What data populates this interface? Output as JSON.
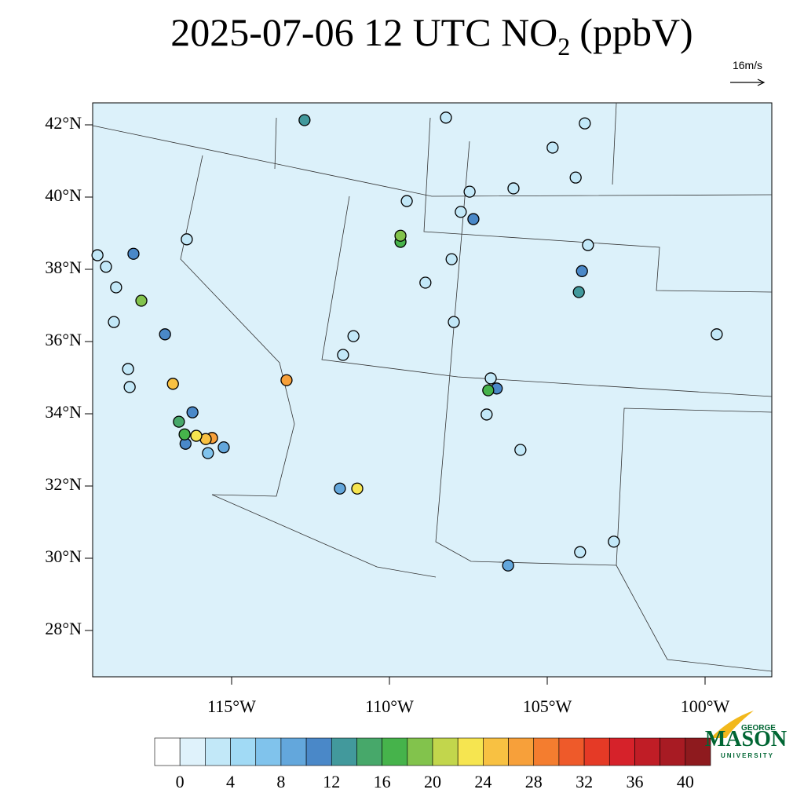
{
  "map": {
    "title": {
      "main": "2025-07-06 12 UTC NO",
      "subscript": "2",
      "unit": "(ppbV)"
    },
    "wind_reference": "16m/s",
    "lat_ticks": [
      {
        "value": 42,
        "label": "42°N"
      },
      {
        "value": 40,
        "label": "40°N"
      },
      {
        "value": 38,
        "label": "38°N"
      },
      {
        "value": 36,
        "label": "36°N"
      },
      {
        "value": 34,
        "label": "34°N"
      },
      {
        "value": 32,
        "label": "32°N"
      },
      {
        "value": 30,
        "label": "30°N"
      },
      {
        "value": 28,
        "label": "28°N"
      }
    ],
    "lon_ticks": [
      {
        "value": -115,
        "label": "115°W"
      },
      {
        "value": -110,
        "label": "110°W"
      },
      {
        "value": -105,
        "label": "105°W"
      },
      {
        "value": -100,
        "label": "100°W"
      }
    ],
    "colorbar": {
      "lim": [
        -2,
        42
      ],
      "ticks": [
        0,
        4,
        8,
        12,
        16,
        20,
        24,
        28,
        32,
        36,
        40
      ],
      "colors": [
        "#ffffff",
        "#dff2fb",
        "#c2e8f8",
        "#a1daf5",
        "#80c3ec",
        "#63a7dc",
        "#4a88c8",
        "#42999c",
        "#47a86a",
        "#46b34b",
        "#82c34c",
        "#c2d64c",
        "#f6e550",
        "#f8c142",
        "#f7a03a",
        "#f47d2f",
        "#ee5a2a",
        "#e53a26",
        "#d6222a",
        "#c01d26",
        "#a81b23",
        "#8e1a1e"
      ]
    },
    "stations": {
      "lon": [
        -112.69,
        -103.81,
        -109.65,
        -109.65,
        -107.34,
        -118.11,
        -117.86,
        -117.11,
        -116.86,
        -116.67,
        -116.49,
        -116.12,
        -115.82,
        -115.62,
        -116.24,
        -116.46,
        -115.75,
        -115.25,
        -113.26,
        -111.02,
        -111.57,
        -106.87,
        -106.6,
        -104.0,
        -103.9,
        -106.24,
        -119.25,
        -118.66,
        -116.42,
        -111.47,
        -111.14,
        -108.21,
        -107.46,
        -106.07,
        -104.83,
        -104.1,
        -103.71,
        -99.63,
        -102.89,
        -103.96,
        -105.85,
        -107.96,
        -108.86,
        -108.03,
        -107.74,
        -118.23,
        -118.28,
        -118.73,
        -109.45,
        -106.79,
        -106.92,
        -118.98
      ],
      "lat": [
        42.13,
        42.04,
        38.93,
        38.76,
        39.39,
        38.43,
        37.13,
        36.2,
        34.83,
        33.78,
        33.43,
        33.39,
        33.3,
        33.33,
        34.04,
        33.17,
        32.91,
        33.07,
        34.93,
        31.93,
        31.93,
        34.65,
        34.7,
        37.37,
        37.95,
        29.8,
        38.39,
        37.5,
        38.83,
        35.63,
        36.15,
        42.2,
        40.15,
        40.24,
        41.37,
        40.54,
        38.67,
        36.2,
        30.46,
        30.17,
        33.0,
        36.54,
        37.63,
        38.28,
        39.59,
        34.74,
        35.24,
        36.54,
        39.89,
        34.98,
        33.98,
        38.07
      ],
      "values": [
        13,
        3,
        18,
        16,
        11,
        11,
        19,
        10,
        24,
        14,
        16,
        22,
        25,
        26,
        10,
        10,
        6,
        8,
        26,
        22,
        9,
        17,
        10,
        12,
        11,
        9,
        2,
        2,
        2,
        2,
        2,
        2,
        3,
        2,
        2,
        2,
        2,
        2,
        2,
        2,
        2,
        2,
        2,
        2,
        2,
        2,
        2,
        2,
        2,
        2,
        2,
        2
      ]
    },
    "logo": {
      "top": "GEORGE",
      "name": "MASON",
      "bottom": "UNIVERSITY"
    }
  }
}
